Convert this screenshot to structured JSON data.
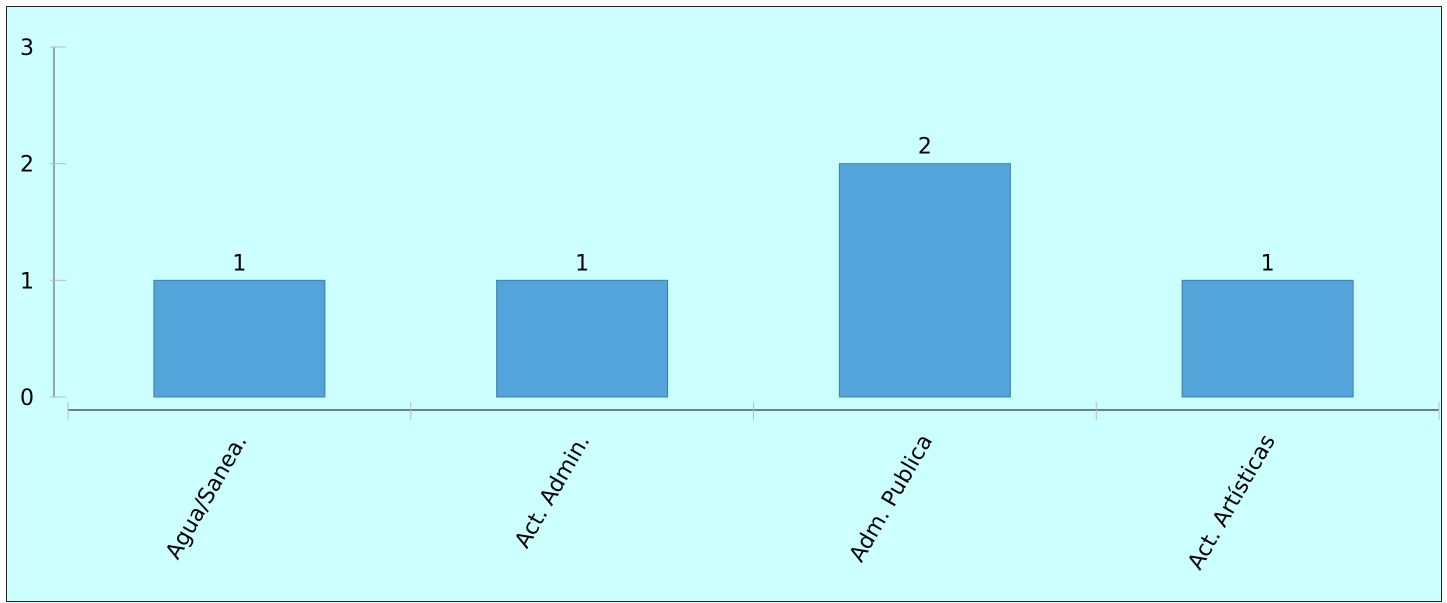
{
  "chart_data": {
    "type": "bar",
    "categories": [
      "Agua/Sanea.",
      "Act. Admin.",
      "Adm. Publica",
      "Act. Artísticas"
    ],
    "values": [
      1,
      1,
      2,
      1
    ],
    "ylim": [
      0,
      3
    ],
    "yticks": [
      0,
      1,
      2,
      3
    ],
    "data_labels": [
      "1",
      "1",
      "2",
      "1"
    ],
    "title": "",
    "xlabel": "",
    "ylabel": "",
    "grid": false,
    "legend": "none",
    "colors": {
      "bar": "#52a4da",
      "bar_border": "#3f7fa8",
      "background": "#ccffff",
      "axis": "#555555",
      "tick": "#bbbbbb"
    }
  }
}
